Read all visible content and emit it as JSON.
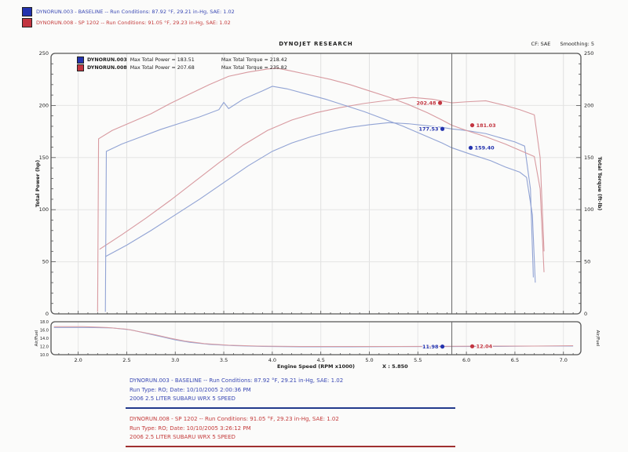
{
  "header": {
    "runs": [
      {
        "id": "DYNORUN.003",
        "color": "#2433ae",
        "text": "DYNORUN.003 - BASELINE  --  Run Conditions: 87.92 °F, 29.21 in-Hg, SAE: 1.02"
      },
      {
        "id": "DYNORUN.008",
        "color": "#c23540",
        "text": "DYNORUN.008 - SP 1202  --  Run Conditions: 91.05 °F, 29.23 in-Hg, SAE: 1.02"
      }
    ]
  },
  "chart_data": [
    {
      "type": "line",
      "title": "DYNOJET RESEARCH",
      "corner_factor": "CF: SAE",
      "smoothing": "Smoothing: 5",
      "xlabel": "Engine Speed (RPM x1000)",
      "ylabel_left": "Total Power (hp)",
      "ylabel_right": "Total Torque (ft-lb)",
      "xlim": [
        1.72,
        7.18
      ],
      "ylim": [
        0,
        250
      ],
      "x_ticks": [
        2.0,
        2.5,
        3.0,
        3.5,
        4.0,
        4.5,
        5.0,
        5.5,
        6.0,
        6.5,
        7.0
      ],
      "y_ticks": [
        0,
        50,
        100,
        150,
        200,
        250
      ],
      "grid": true,
      "legend_position": "top-left",
      "cursor": {
        "x": 5.85,
        "label": "X : 5.850"
      },
      "legend": [
        {
          "run": "DYNORUN.003",
          "max_power_label": "Max Total Power = 183.51",
          "max_torque_label": "Max Total Torque = 218.42",
          "color": "#2433ae"
        },
        {
          "run": "DYNORUN.008",
          "max_power_label": "Max Total Power = 207.68",
          "max_torque_label": "Max Total Torque = 235.82",
          "color": "#c23540"
        }
      ],
      "series": [
        {
          "name": "power-003-baseline",
          "color": "#91a3d4",
          "points": [
            [
              2.28,
              55
            ],
            [
              2.5,
              66
            ],
            [
              2.75,
              80
            ],
            [
              3.0,
              95
            ],
            [
              3.25,
              110
            ],
            [
              3.5,
              126
            ],
            [
              3.75,
              142
            ],
            [
              4.0,
              156
            ],
            [
              4.2,
              164
            ],
            [
              4.4,
              170
            ],
            [
              4.6,
              175
            ],
            [
              4.8,
              179
            ],
            [
              5.0,
              181.5
            ],
            [
              5.2,
              183.5
            ],
            [
              5.4,
              182.5
            ],
            [
              5.6,
              180.5
            ],
            [
              5.75,
              179
            ],
            [
              5.85,
              177.5
            ],
            [
              6.0,
              176
            ],
            [
              6.2,
              173
            ],
            [
              6.35,
              169
            ],
            [
              6.5,
              165
            ],
            [
              6.6,
              161
            ],
            [
              6.66,
              120
            ],
            [
              6.69,
              35
            ]
          ]
        },
        {
          "name": "power-008-sp1202",
          "color": "#d89aa0",
          "points": [
            [
              2.22,
              62
            ],
            [
              2.45,
              76
            ],
            [
              2.7,
              92
            ],
            [
              2.95,
              109
            ],
            [
              3.2,
              127
            ],
            [
              3.45,
              145
            ],
            [
              3.7,
              162
            ],
            [
              3.95,
              176
            ],
            [
              4.2,
              186
            ],
            [
              4.45,
              193
            ],
            [
              4.7,
              198
            ],
            [
              4.95,
              202
            ],
            [
              5.2,
              205
            ],
            [
              5.45,
              207.7
            ],
            [
              5.65,
              206
            ],
            [
              5.85,
              202.5
            ],
            [
              6.0,
              203.5
            ],
            [
              6.2,
              204.5
            ],
            [
              6.4,
              200
            ],
            [
              6.55,
              196
            ],
            [
              6.7,
              191
            ],
            [
              6.76,
              150
            ],
            [
              6.8,
              60
            ]
          ]
        },
        {
          "name": "torque-003-baseline",
          "color": "#91a3d4",
          "points": [
            [
              2.28,
              2
            ],
            [
              2.29,
              156
            ],
            [
              2.45,
              163
            ],
            [
              2.65,
              170
            ],
            [
              2.85,
              177
            ],
            [
              3.05,
              183
            ],
            [
              3.25,
              189
            ],
            [
              3.45,
              196
            ],
            [
              3.5,
              203
            ],
            [
              3.55,
              197
            ],
            [
              3.7,
              206
            ],
            [
              3.9,
              214
            ],
            [
              4.0,
              218.4
            ],
            [
              4.15,
              216
            ],
            [
              4.35,
              211
            ],
            [
              4.55,
              206
            ],
            [
              4.75,
              200
            ],
            [
              4.95,
              194
            ],
            [
              5.15,
              187
            ],
            [
              5.35,
              180
            ],
            [
              5.55,
              172
            ],
            [
              5.75,
              164
            ],
            [
              5.85,
              159.4
            ],
            [
              6.05,
              153
            ],
            [
              6.25,
              147
            ],
            [
              6.4,
              141
            ],
            [
              6.55,
              136
            ],
            [
              6.62,
              131
            ],
            [
              6.68,
              95
            ],
            [
              6.71,
              30
            ]
          ]
        },
        {
          "name": "torque-008-sp1202",
          "color": "#d89aa0",
          "points": [
            [
              2.2,
              2
            ],
            [
              2.21,
              168
            ],
            [
              2.35,
              176
            ],
            [
              2.55,
              184
            ],
            [
              2.75,
              192
            ],
            [
              2.95,
              202
            ],
            [
              3.15,
              211
            ],
            [
              3.35,
              220
            ],
            [
              3.55,
              228
            ],
            [
              3.75,
              232
            ],
            [
              3.95,
              235
            ],
            [
              4.05,
              235.8
            ],
            [
              4.2,
              233
            ],
            [
              4.4,
              229
            ],
            [
              4.6,
              225
            ],
            [
              4.8,
              220
            ],
            [
              5.0,
              214
            ],
            [
              5.2,
              208
            ],
            [
              5.4,
              201
            ],
            [
              5.6,
              193
            ],
            [
              5.75,
              186
            ],
            [
              5.85,
              181
            ],
            [
              6.0,
              176
            ],
            [
              6.2,
              170
            ],
            [
              6.4,
              163
            ],
            [
              6.55,
              157
            ],
            [
              6.7,
              151
            ],
            [
              6.76,
              120
            ],
            [
              6.8,
              40
            ]
          ]
        }
      ],
      "markers": [
        {
          "label": "202.48",
          "value": 202.48,
          "x": 5.85,
          "color": "#c23540",
          "side": "left",
          "dot_dx": -15
        },
        {
          "label": "177.53",
          "value": 177.53,
          "x": 5.85,
          "color": "#2433ae",
          "side": "left",
          "dot_dx": -12
        },
        {
          "label": "181.03",
          "value": 181.03,
          "x": 5.85,
          "color": "#c23540",
          "side": "right",
          "dot_dx": 26
        },
        {
          "label": "159.40",
          "value": 159.4,
          "x": 5.85,
          "color": "#2433ae",
          "side": "right",
          "dot_dx": 24
        }
      ]
    },
    {
      "type": "line",
      "ylabel_left": "Air/Fuel",
      "ylabel_right": "Air/Fuel",
      "ylim": [
        10,
        18
      ],
      "y_ticks": [
        18.0,
        16.0,
        14.0,
        12.0,
        10.0
      ],
      "series": [
        {
          "name": "afr-003-baseline",
          "color": "#91a3d4",
          "points": [
            [
              1.75,
              16.6
            ],
            [
              2.1,
              16.6
            ],
            [
              2.35,
              16.5
            ],
            [
              2.55,
              16.0
            ],
            [
              2.7,
              15.2
            ],
            [
              2.85,
              14.4
            ],
            [
              3.0,
              13.6
            ],
            [
              3.15,
              13.0
            ],
            [
              3.35,
              12.5
            ],
            [
              3.6,
              12.2
            ],
            [
              3.9,
              12.0
            ],
            [
              4.3,
              11.9
            ],
            [
              4.8,
              11.9
            ],
            [
              5.3,
              11.95
            ],
            [
              5.85,
              11.98
            ],
            [
              6.3,
              12.0
            ],
            [
              6.7,
              12.1
            ],
            [
              7.1,
              12.1
            ]
          ]
        },
        {
          "name": "afr-008-sp1202",
          "color": "#d89aa0",
          "points": [
            [
              1.75,
              16.8
            ],
            [
              2.05,
              16.8
            ],
            [
              2.3,
              16.6
            ],
            [
              2.5,
              16.2
            ],
            [
              2.65,
              15.5
            ],
            [
              2.8,
              14.8
            ],
            [
              2.95,
              14.0
            ],
            [
              3.1,
              13.3
            ],
            [
              3.3,
              12.7
            ],
            [
              3.55,
              12.3
            ],
            [
              3.85,
              12.1
            ],
            [
              4.3,
              12.0
            ],
            [
              4.8,
              12.0
            ],
            [
              5.3,
              12.0
            ],
            [
              5.85,
              12.04
            ],
            [
              6.3,
              12.1
            ],
            [
              6.7,
              12.1
            ],
            [
              7.1,
              12.2
            ]
          ]
        }
      ],
      "markers": [
        {
          "label": "11.98",
          "value": 11.98,
          "x": 5.85,
          "color": "#2433ae",
          "side": "left",
          "dot_dx": -12
        },
        {
          "label": "12.04",
          "value": 12.04,
          "x": 5.85,
          "color": "#c23540",
          "side": "right",
          "dot_dx": 26
        }
      ]
    }
  ],
  "footer": {
    "blocks": [
      {
        "color": "#3a49b4",
        "lines": [
          "DYNORUN.003 - BASELINE  --  Run Conditions: 87.92 °F, 29.21 in-Hg, SAE: 1.02",
          "Run Type: RO; Date: 10/10/2005 2:00:36 PM",
          "2006 2.5 LITER SUBARU WRX 5 SPEED"
        ]
      },
      {
        "color": "#c43b3b",
        "lines": [
          "DYNORUN.008 - SP 1202  --  Run Conditions: 91.05 °F, 29.23 in-Hg, SAE: 1.02",
          "Run Type: RO; Date: 10/10/2005 3:26:12 PM",
          "2006 2.5 LITER SUBARU WRX 5 SPEED"
        ]
      }
    ]
  }
}
